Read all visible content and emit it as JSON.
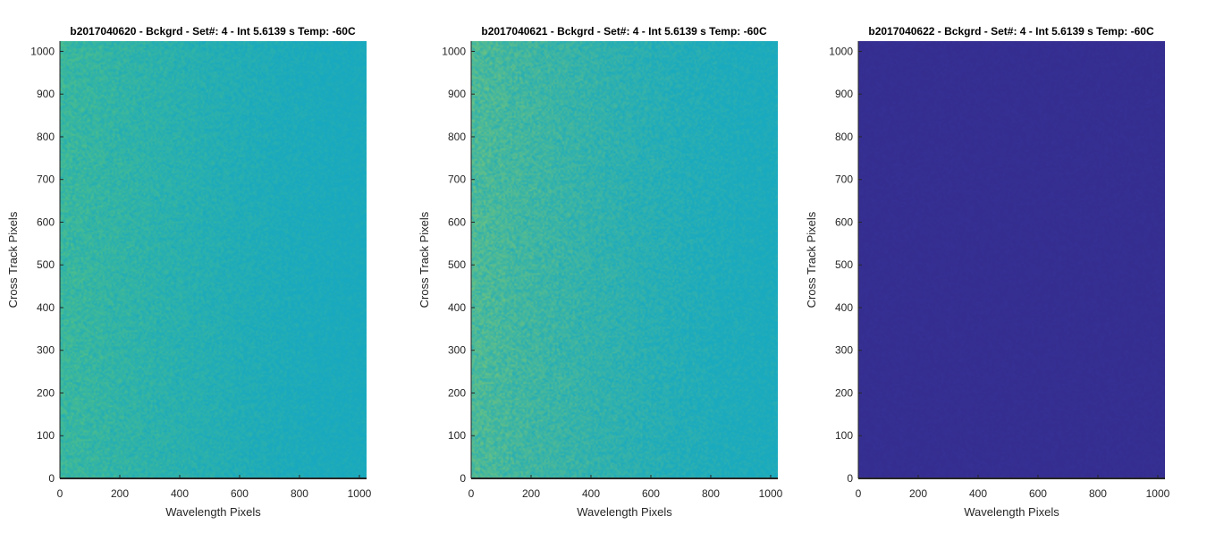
{
  "chart_data": [
    {
      "type": "heatmap",
      "title": "b2017040620 - Bckgrd - Set#: 4 - Int 5.6139 s Temp: -60C",
      "xlabel": "Wavelength Pixels",
      "ylabel": "Cross Track Pixels",
      "xlim": [
        0,
        1024
      ],
      "ylim": [
        0,
        1024
      ],
      "xticks": [
        0,
        200,
        400,
        600,
        800,
        1000
      ],
      "yticks": [
        0,
        100,
        200,
        300,
        400,
        500,
        600,
        700,
        800,
        900,
        1000
      ],
      "colormap": "parula",
      "colors": {
        "low": "#19a9bf",
        "high": "#4fbf8a",
        "base": "#22a8b3"
      },
      "pattern": "noisy background, slightly brighter (greener) toward low wavelength pixels"
    },
    {
      "type": "heatmap",
      "title": "b2017040621 - Bckgrd - Set#: 4 - Int 5.6139 s Temp: -60C",
      "xlabel": "Wavelength Pixels",
      "ylabel": "Cross Track Pixels",
      "xlim": [
        0,
        1024
      ],
      "ylim": [
        0,
        1024
      ],
      "xticks": [
        0,
        200,
        400,
        600,
        800,
        1000
      ],
      "yticks": [
        0,
        100,
        200,
        300,
        400,
        500,
        600,
        700,
        800,
        900,
        1000
      ],
      "colormap": "parula",
      "colors": {
        "low": "#1aaabf",
        "high": "#6cc280",
        "base": "#2aafad"
      },
      "pattern": "noisy background, brighter (greener) toward low wavelength pixels"
    },
    {
      "type": "heatmap",
      "title": "b2017040622 - Bckgrd - Set#: 4 - Int 5.6139 s Temp: -60C",
      "xlabel": "Wavelength Pixels",
      "ylabel": "Cross Track Pixels",
      "xlim": [
        0,
        1024
      ],
      "ylim": [
        0,
        1024
      ],
      "xticks": [
        0,
        200,
        400,
        600,
        800,
        1000
      ],
      "yticks": [
        0,
        100,
        200,
        300,
        400,
        500,
        600,
        700,
        800,
        900,
        1000
      ],
      "colormap": "parula",
      "colors": {
        "low": "#352e8f",
        "high": "#3a34a0",
        "base": "#352e8f"
      },
      "pattern": "nearly uniform dark blue"
    }
  ]
}
